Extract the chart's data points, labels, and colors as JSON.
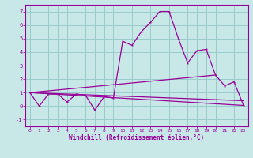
{
  "xlabel": "Windchill (Refroidissement éolien,°C)",
  "bg_color": "#c8e8e8",
  "line_color": "#990099",
  "grid_color": "#99cccc",
  "xlim": [
    -0.5,
    23.5
  ],
  "ylim": [
    -1.5,
    7.5
  ],
  "yticks": [
    -1,
    0,
    1,
    2,
    3,
    4,
    5,
    6,
    7
  ],
  "xticks": [
    0,
    1,
    2,
    3,
    4,
    5,
    6,
    7,
    8,
    9,
    10,
    11,
    12,
    13,
    14,
    15,
    16,
    17,
    18,
    19,
    20,
    21,
    22,
    23
  ],
  "main_x": [
    0,
    1,
    2,
    3,
    4,
    5,
    6,
    7,
    8,
    9,
    10,
    11,
    12,
    13,
    14,
    15,
    16,
    17,
    18,
    19,
    20,
    21,
    22,
    23
  ],
  "main_y": [
    1.0,
    0.0,
    0.9,
    0.9,
    0.3,
    0.9,
    0.8,
    -0.3,
    0.7,
    0.6,
    4.8,
    4.5,
    5.5,
    6.2,
    7.0,
    7.0,
    5.0,
    3.2,
    4.1,
    4.2,
    2.3,
    1.5,
    1.8,
    0.1
  ],
  "line1_x": [
    0,
    23
  ],
  "line1_y": [
    1.0,
    0.05
  ],
  "line2_x": [
    0,
    20
  ],
  "line2_y": [
    1.0,
    2.3
  ],
  "line3_x": [
    0,
    23
  ],
  "line3_y": [
    1.0,
    0.4
  ]
}
